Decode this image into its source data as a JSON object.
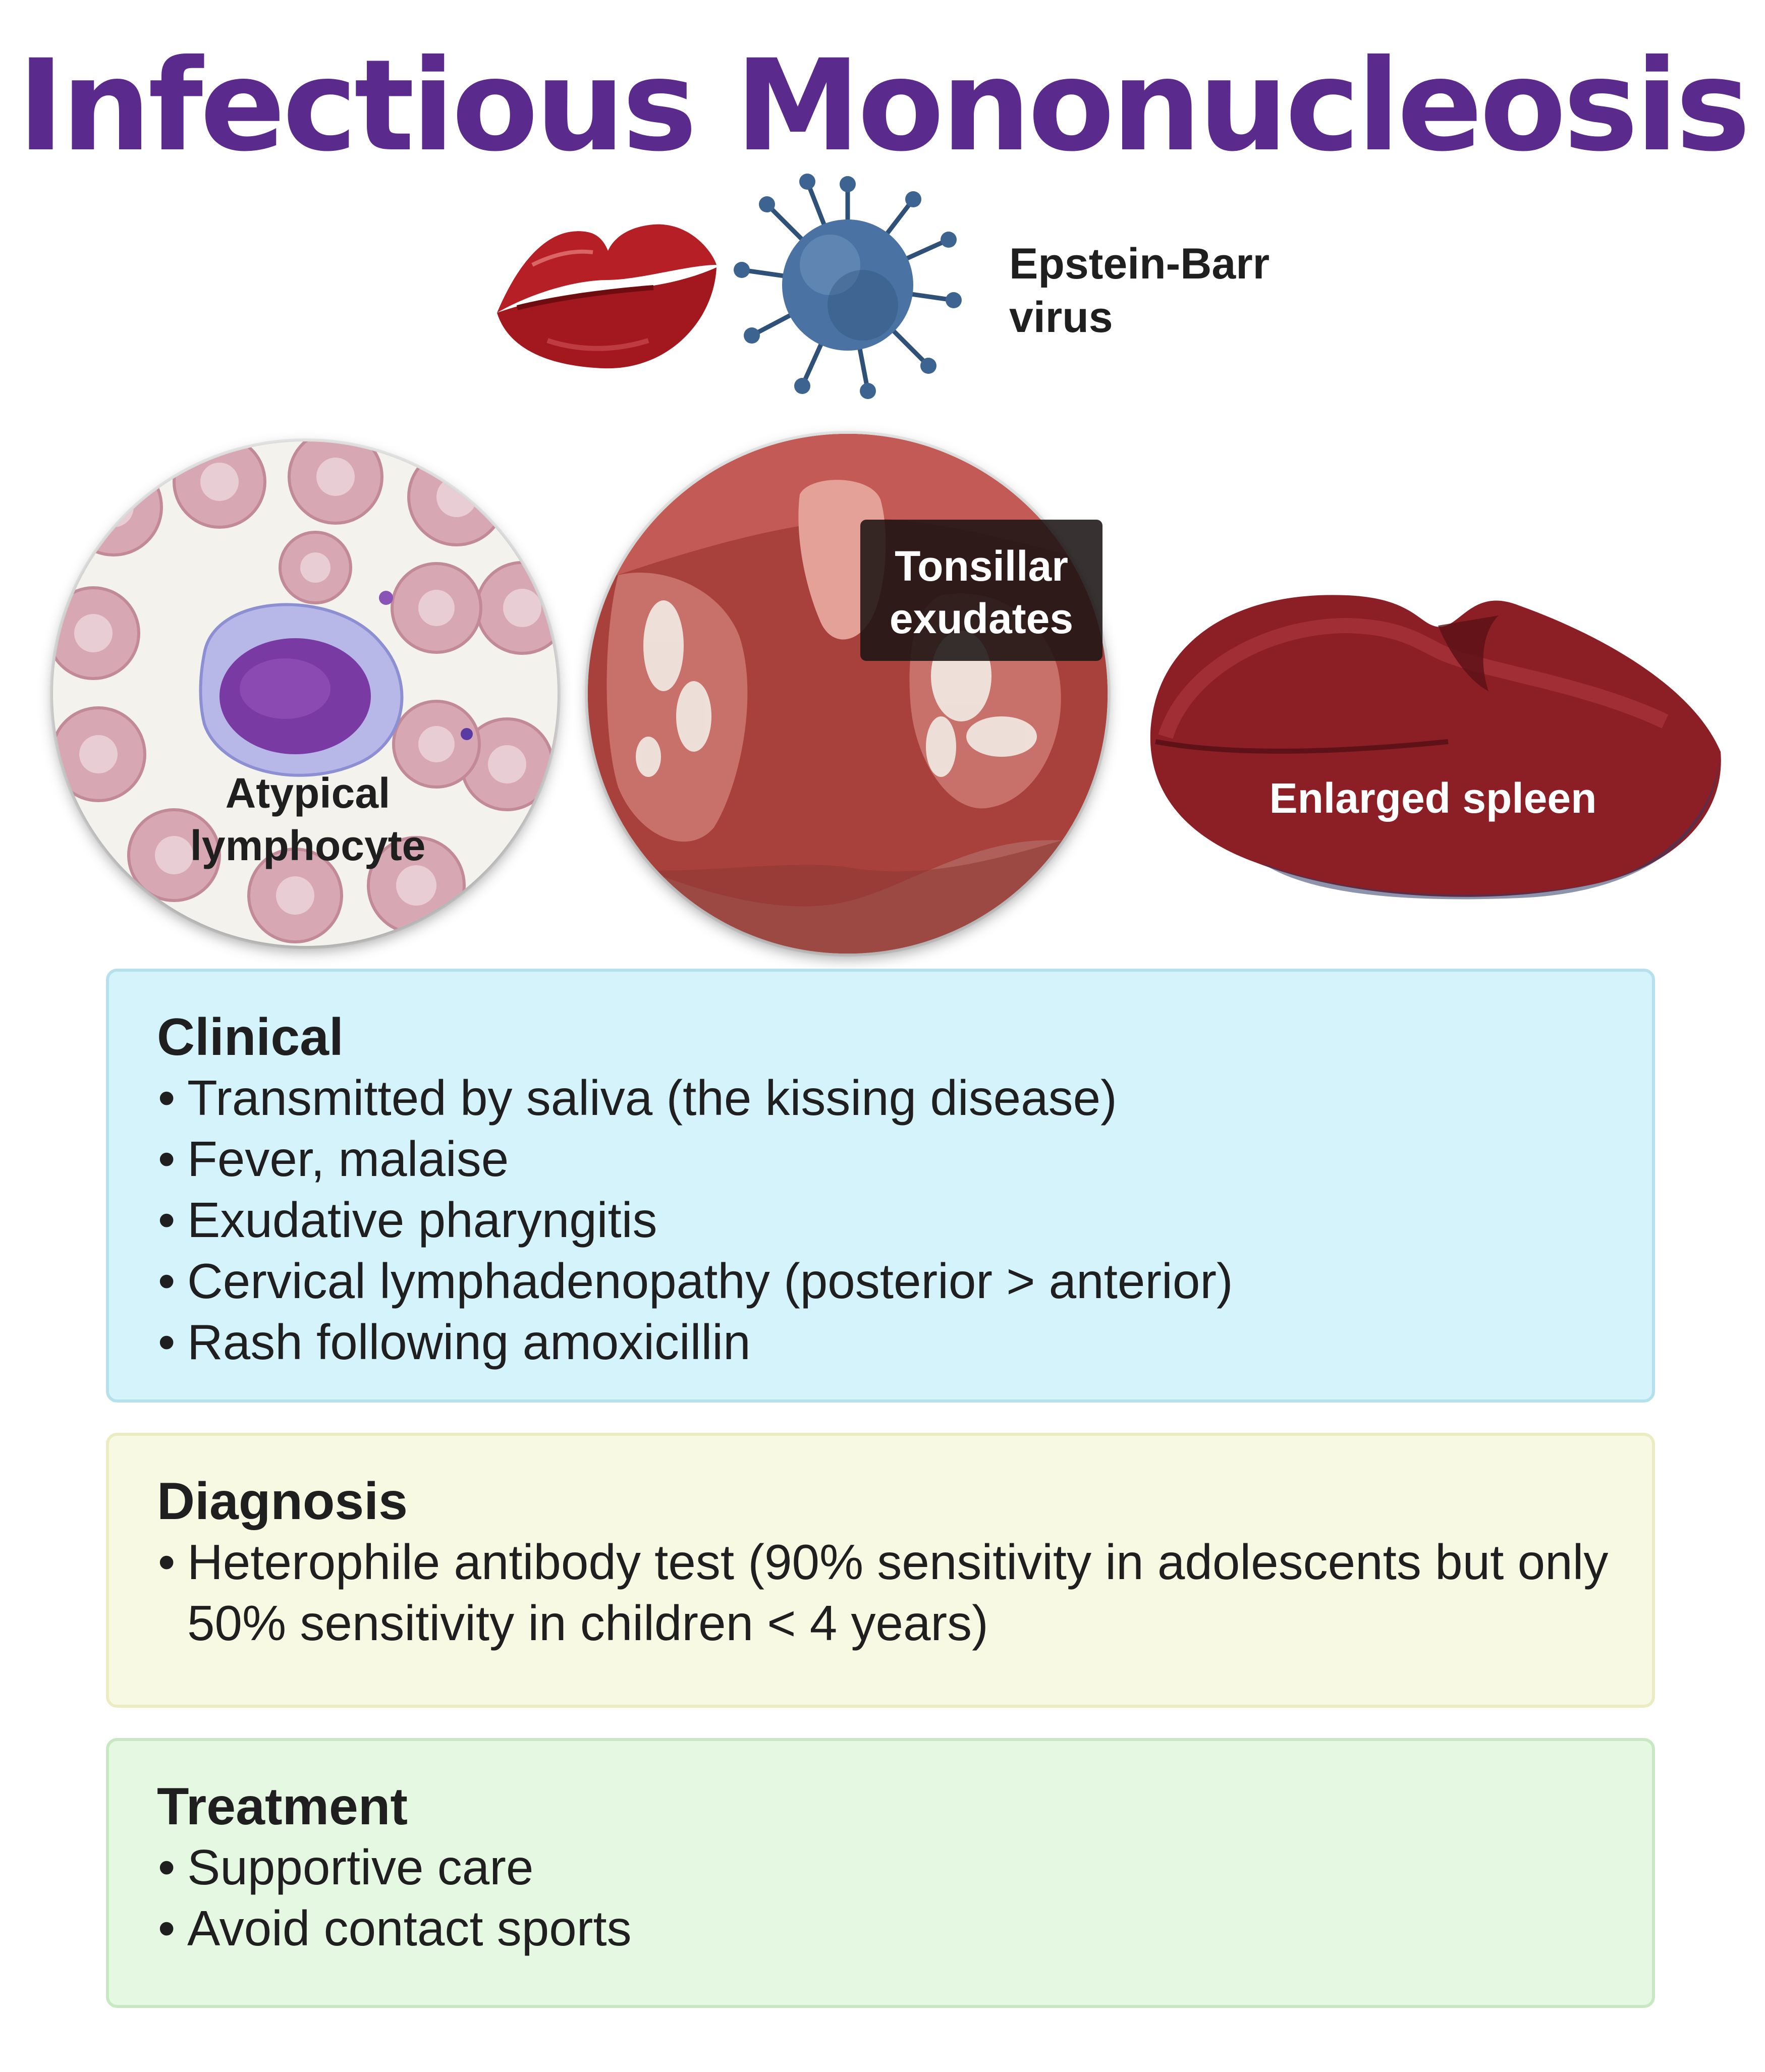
{
  "title": "Infectious Mononucleosis",
  "header": {
    "lips_icon": "lips-icon",
    "virus_icon": "virus-icon",
    "virus_label_line1": "Epstein-Barr",
    "virus_label_line2": "virus"
  },
  "images": {
    "lymphocyte": {
      "label_line1": "Atypical",
      "label_line2": "lymphocyte"
    },
    "tonsils": {
      "label_line1": "Tonsillar",
      "label_line2": "exudates"
    },
    "spleen": {
      "label": "Enlarged spleen"
    }
  },
  "sections": {
    "clinical": {
      "heading": "Clinical",
      "items": [
        "Transmitted by saliva (the kissing disease)",
        "Fever, malaise",
        "Exudative pharyngitis",
        "Cervical lymphadenopathy (posterior > anterior)",
        "Rash following amoxicillin"
      ]
    },
    "diagnosis": {
      "heading": "Diagnosis",
      "items": [
        "Heterophile antibody test (90% sensitivity in adolescents but only 50% sensitivity in children < 4 years)"
      ]
    },
    "treatment": {
      "heading": "Treatment",
      "items": [
        "Supportive care",
        "Avoid contact sports"
      ]
    }
  },
  "colors": {
    "title": "#5a2a8c",
    "clinical_bg": "#d4f3fb",
    "diagnosis_bg": "#f8f9e2",
    "treatment_bg": "#e5f8e2"
  }
}
